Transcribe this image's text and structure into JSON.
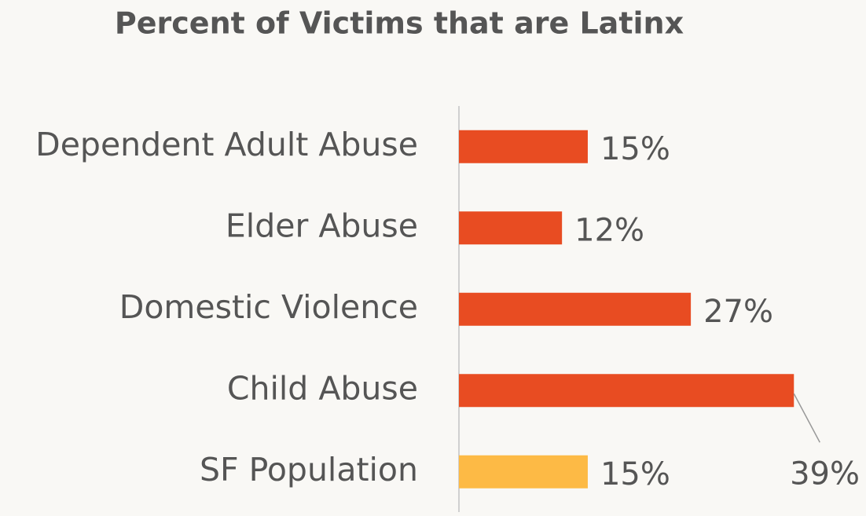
{
  "chart_data": {
    "type": "bar",
    "orientation": "horizontal",
    "title": "Percent of Victims that are Latinx",
    "categories": [
      "Dependent Adult Abuse",
      "Elder Abuse",
      "Domestic Violence",
      "Child Abuse",
      "SF Population"
    ],
    "values": [
      15,
      12,
      27,
      39,
      15
    ],
    "value_labels": [
      "15%",
      "12%",
      "27%",
      "39%",
      "15%"
    ],
    "colors": [
      "#e84c22",
      "#e84c22",
      "#e84c22",
      "#e84c22",
      "#fdba45"
    ]
  }
}
